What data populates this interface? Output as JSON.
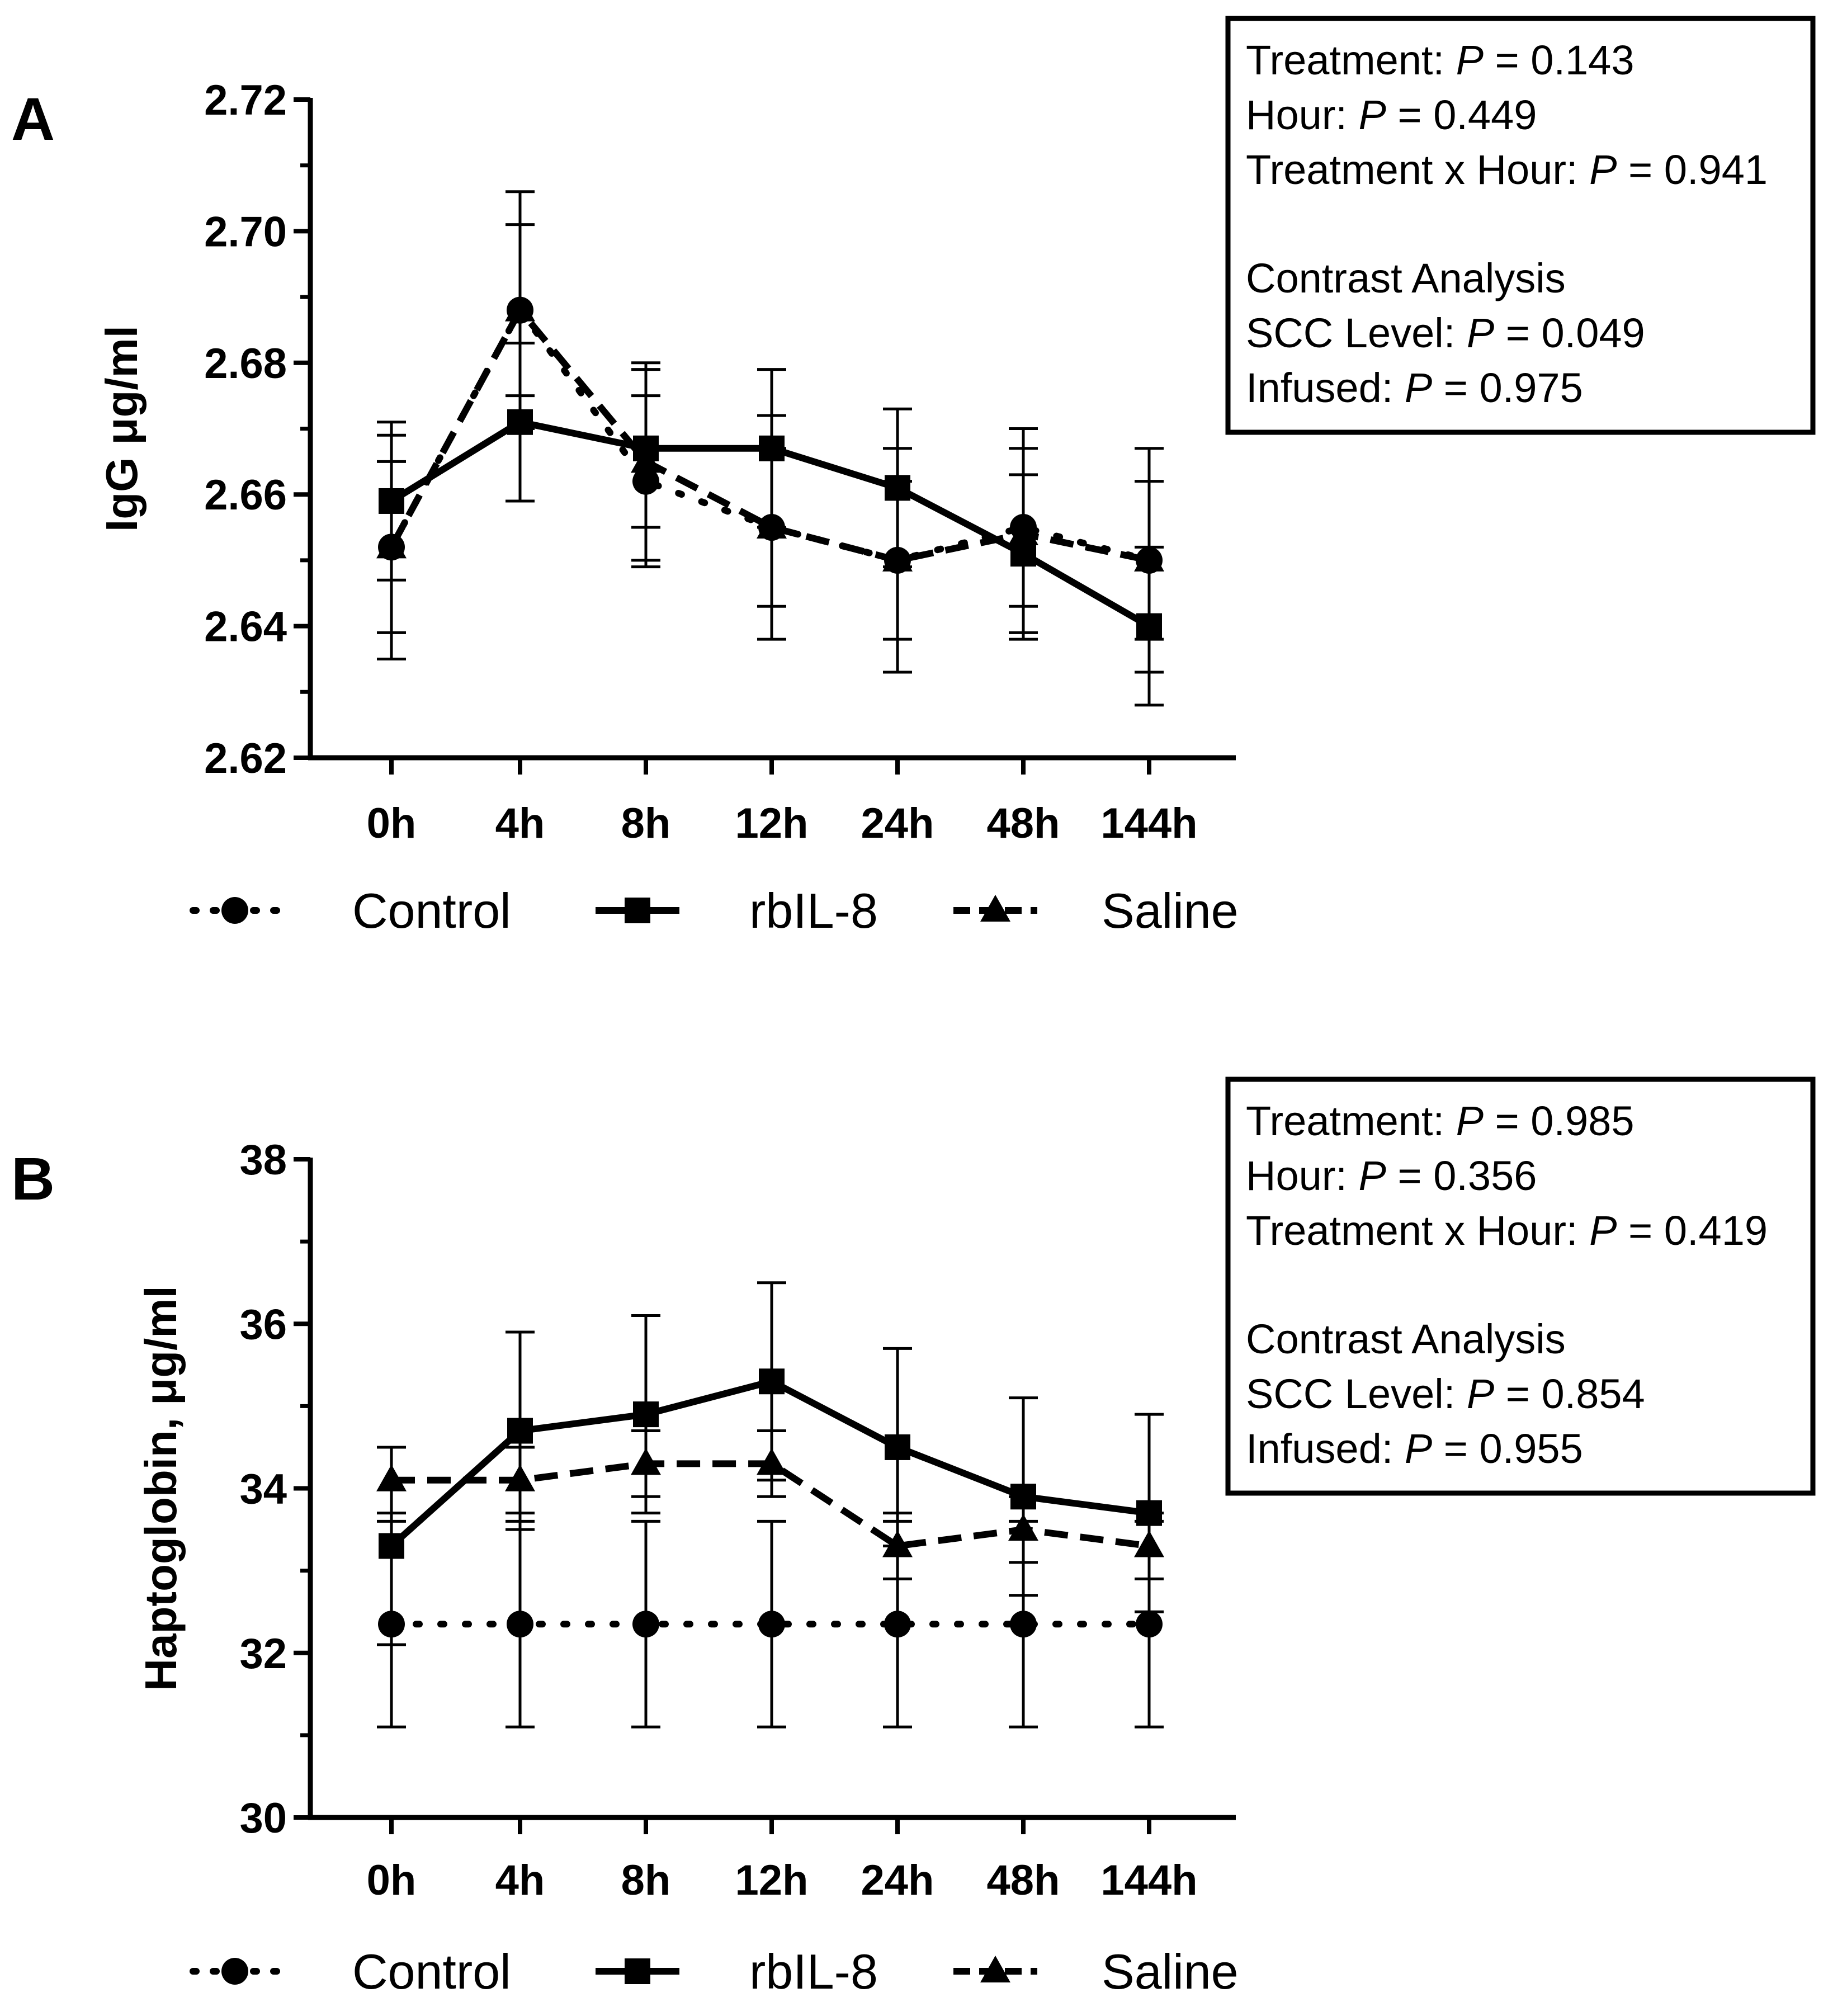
{
  "chart_data": [
    {
      "panel": "A",
      "type": "line",
      "ylabel": "IgG μg/ml",
      "ylim": [
        2.62,
        2.72
      ],
      "yticks": [
        "2.62",
        "2.64",
        "2.66",
        "2.68",
        "2.70",
        "2.72"
      ],
      "categories": [
        "0h",
        "4h",
        "8h",
        "12h",
        "24h",
        "48h",
        "144h"
      ],
      "series": [
        {
          "name": "Control",
          "marker": "circle",
          "style": "dotted",
          "values": [
            2.652,
            2.688,
            2.662,
            2.655,
            2.65,
            2.655,
            2.65
          ],
          "err": [
            0.013,
            0.013,
            0.013,
            0.012,
            0.012,
            0.012,
            0.012
          ]
        },
        {
          "name": "rbIL-8",
          "marker": "square",
          "style": "solid",
          "values": [
            2.659,
            2.671,
            2.667,
            2.667,
            2.661,
            2.651,
            2.64
          ],
          "err": [
            0.012,
            0.012,
            0.012,
            0.012,
            0.012,
            0.012,
            0.012
          ]
        },
        {
          "name": "Saline",
          "marker": "triangle",
          "style": "dashed",
          "values": [
            2.652,
            2.688,
            2.665,
            2.655,
            2.65,
            2.654,
            2.65
          ],
          "err": [
            0.017,
            0.018,
            0.015,
            0.017,
            0.017,
            0.016,
            0.017
          ]
        }
      ],
      "stats": {
        "treatment_label": "Treatment:",
        "treatment_p": "= 0.143",
        "hour_label": "Hour:",
        "hour_p": "= 0.449",
        "interaction_label": "Treatment x Hour:",
        "interaction_p": "= 0.941",
        "contrast_title": "Contrast Analysis",
        "scc_label": "SCC Level:",
        "scc_p": "= 0.049",
        "infused_label": "Infused:",
        "infused_p": "= 0.975",
        "p_symbol": "P"
      }
    },
    {
      "panel": "B",
      "type": "line",
      "ylabel": "Haptoglobin, μg/ml",
      "ylim": [
        30,
        38
      ],
      "yticks": [
        "30",
        "32",
        "34",
        "36",
        "38"
      ],
      "categories": [
        "0h",
        "4h",
        "8h",
        "12h",
        "24h",
        "48h",
        "144h"
      ],
      "series": [
        {
          "name": "Control",
          "marker": "circle",
          "style": "dotted",
          "values": [
            32.35,
            32.35,
            32.35,
            32.35,
            32.35,
            32.35,
            32.35
          ],
          "err": [
            1.25,
            1.25,
            1.25,
            1.25,
            1.25,
            1.25,
            1.25
          ]
        },
        {
          "name": "rbIL-8",
          "marker": "square",
          "style": "solid",
          "values": [
            33.3,
            34.7,
            34.9,
            35.3,
            34.5,
            33.9,
            33.7
          ],
          "err": [
            1.2,
            1.2,
            1.2,
            1.2,
            1.2,
            1.2,
            1.2
          ]
        },
        {
          "name": "Saline",
          "marker": "triangle",
          "style": "dashed",
          "values": [
            34.1,
            34.1,
            34.3,
            34.3,
            33.3,
            33.5,
            33.3
          ],
          "err": [
            0.4,
            0.4,
            0.4,
            0.4,
            0.4,
            0.4,
            0.4
          ]
        }
      ],
      "stats": {
        "treatment_label": "Treatment:",
        "treatment_p": "= 0.985",
        "hour_label": "Hour:",
        "hour_p": "= 0.356",
        "interaction_label": "Treatment x Hour:",
        "interaction_p": "= 0.419",
        "contrast_title": "Contrast Analysis",
        "scc_label": "SCC Level:",
        "scc_p": "= 0.854",
        "infused_label": "Infused:",
        "infused_p": "= 0.955",
        "p_symbol": "P"
      }
    }
  ]
}
